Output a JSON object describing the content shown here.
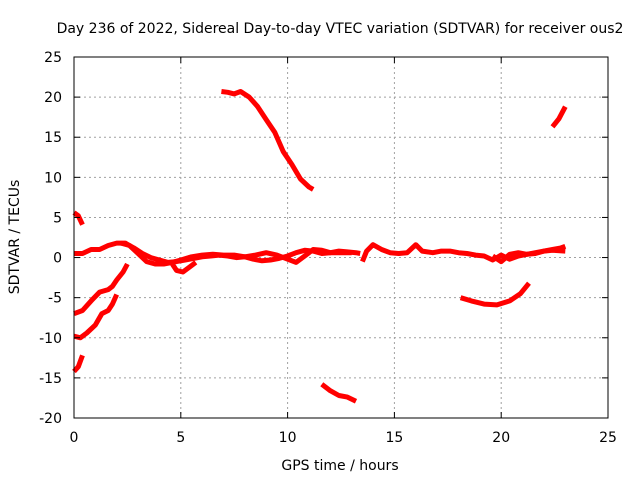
{
  "chart_data": {
    "type": "line",
    "title": "Day 236 of 2022, Sidereal Day-to-day VTEC variation (SDTVAR) for receiver ous2",
    "xlabel": "GPS time / hours",
    "ylabel": "SDTVAR / TECUs",
    "xlim": [
      0,
      25
    ],
    "ylim": [
      -20,
      25
    ],
    "grid": true,
    "legend": "none",
    "x_ticks": [
      "0",
      "5",
      "10",
      "15",
      "20",
      "25"
    ],
    "y_ticks": [
      "-20",
      "-15",
      "-10",
      "-5",
      "0",
      "5",
      "10",
      "15",
      "20",
      "25"
    ],
    "color": "#ff0000",
    "series": [
      {
        "name": "arc-near-zero-1",
        "points": [
          [
            0,
            0.5
          ],
          [
            0.4,
            0.5
          ],
          [
            0.8,
            1.0
          ],
          [
            1.2,
            1.0
          ],
          [
            1.6,
            1.5
          ],
          [
            2.0,
            1.8
          ],
          [
            2.4,
            1.8
          ],
          [
            2.8,
            1.2
          ],
          [
            3.2,
            0.5
          ],
          [
            3.6,
            0.0
          ],
          [
            4.0,
            -0.3
          ],
          [
            4.4,
            -0.6
          ],
          [
            4.8,
            -0.5
          ],
          [
            5.2,
            -0.3
          ],
          [
            5.6,
            -0.1
          ],
          [
            6.0,
            0.1
          ],
          [
            6.4,
            0.2
          ],
          [
            6.8,
            0.3
          ],
          [
            7.2,
            0.2
          ],
          [
            7.6,
            0.0
          ],
          [
            8.0,
            0.1
          ],
          [
            8.4,
            -0.2
          ],
          [
            8.8,
            -0.4
          ],
          [
            9.2,
            -0.3
          ],
          [
            9.6,
            -0.1
          ],
          [
            10.0,
            0.2
          ],
          [
            10.4,
            0.6
          ],
          [
            10.8,
            0.9
          ],
          [
            11.2,
            0.8
          ],
          [
            11.6,
            0.5
          ],
          [
            12.0,
            0.6
          ],
          [
            12.4,
            0.8
          ],
          [
            12.8,
            0.7
          ],
          [
            13.2,
            0.6
          ],
          [
            13.4,
            0.5
          ]
        ]
      },
      {
        "name": "arc-near-zero-2",
        "points": [
          [
            2.2,
            1.8
          ],
          [
            2.6,
            1.5
          ],
          [
            3.0,
            0.5
          ],
          [
            3.4,
            -0.5
          ],
          [
            3.8,
            -0.8
          ],
          [
            4.2,
            -0.8
          ],
          [
            4.6,
            -0.6
          ],
          [
            5.0,
            -0.3
          ],
          [
            5.5,
            0.1
          ],
          [
            6.0,
            0.3
          ],
          [
            6.5,
            0.4
          ],
          [
            7.0,
            0.3
          ],
          [
            7.5,
            0.3
          ],
          [
            8.0,
            0.1
          ],
          [
            8.5,
            0.3
          ],
          [
            9.0,
            0.6
          ],
          [
            9.5,
            0.3
          ],
          [
            10.0,
            -0.2
          ],
          [
            10.4,
            -0.6
          ],
          [
            10.8,
            0.2
          ],
          [
            11.2,
            1.0
          ],
          [
            11.6,
            0.9
          ],
          [
            12.0,
            0.6
          ],
          [
            12.5,
            0.6
          ],
          [
            13.0,
            0.6
          ]
        ]
      },
      {
        "name": "arc-dip-small",
        "points": [
          [
            4.6,
            -0.8
          ],
          [
            4.8,
            -1.6
          ],
          [
            5.1,
            -1.8
          ],
          [
            5.4,
            -1.2
          ],
          [
            5.7,
            -0.6
          ]
        ]
      },
      {
        "name": "arc-near-zero-3",
        "points": [
          [
            13.5,
            -0.5
          ],
          [
            13.7,
            0.8
          ],
          [
            14.0,
            1.6
          ],
          [
            14.4,
            1.0
          ],
          [
            14.8,
            0.6
          ],
          [
            15.2,
            0.5
          ],
          [
            15.6,
            0.6
          ],
          [
            16.0,
            1.6
          ],
          [
            16.3,
            0.8
          ],
          [
            16.8,
            0.6
          ],
          [
            17.2,
            0.8
          ],
          [
            17.6,
            0.8
          ],
          [
            18.0,
            0.6
          ],
          [
            18.4,
            0.5
          ],
          [
            18.8,
            0.3
          ],
          [
            19.2,
            0.2
          ],
          [
            19.6,
            -0.3
          ],
          [
            20.0,
            0.3
          ],
          [
            20.4,
            -0.2
          ],
          [
            20.8,
            0.2
          ],
          [
            21.2,
            0.4
          ],
          [
            21.6,
            0.6
          ],
          [
            22.0,
            0.8
          ],
          [
            22.4,
            1.0
          ],
          [
            22.8,
            1.2
          ],
          [
            23.0,
            1.4
          ]
        ]
      },
      {
        "name": "arc-near-zero-4",
        "points": [
          [
            19.6,
            0.2
          ],
          [
            20.0,
            -0.5
          ],
          [
            20.4,
            0.4
          ],
          [
            20.8,
            0.6
          ],
          [
            21.2,
            0.4
          ],
          [
            21.6,
            0.5
          ],
          [
            22.0,
            0.8
          ],
          [
            22.4,
            0.9
          ],
          [
            23.0,
            0.8
          ]
        ]
      },
      {
        "name": "arc-decreasing-upper",
        "points": [
          [
            6.9,
            20.7
          ],
          [
            7.2,
            20.6
          ],
          [
            7.5,
            20.4
          ],
          [
            7.8,
            20.7
          ],
          [
            8.2,
            20.0
          ],
          [
            8.6,
            18.8
          ],
          [
            9.0,
            17.2
          ],
          [
            9.4,
            15.6
          ],
          [
            9.8,
            13.2
          ],
          [
            10.2,
            11.6
          ],
          [
            10.6,
            9.8
          ],
          [
            11.0,
            8.8
          ],
          [
            11.2,
            8.5
          ]
        ]
      },
      {
        "name": "arc-upper-right",
        "points": [
          [
            22.4,
            16.3
          ],
          [
            22.7,
            17.3
          ],
          [
            23.0,
            18.8
          ]
        ]
      },
      {
        "name": "arc-start-high",
        "points": [
          [
            0,
            5.6
          ],
          [
            0.2,
            5.2
          ],
          [
            0.4,
            4.1
          ]
        ]
      },
      {
        "name": "arc-start-minus7",
        "points": [
          [
            0,
            -7.0
          ],
          [
            0.4,
            -6.6
          ],
          [
            0.8,
            -5.4
          ],
          [
            1.2,
            -4.3
          ],
          [
            1.6,
            -4.0
          ],
          [
            1.8,
            -3.6
          ],
          [
            2.0,
            -2.8
          ],
          [
            2.3,
            -1.8
          ],
          [
            2.5,
            -0.8
          ]
        ]
      },
      {
        "name": "arc-start-minus10",
        "points": [
          [
            0,
            -9.8
          ],
          [
            0.3,
            -10.0
          ],
          [
            0.6,
            -9.4
          ],
          [
            1.0,
            -8.4
          ],
          [
            1.3,
            -7.0
          ],
          [
            1.6,
            -6.6
          ],
          [
            1.8,
            -5.8
          ],
          [
            2.0,
            -4.6
          ]
        ]
      },
      {
        "name": "arc-start-minus14",
        "points": [
          [
            0,
            -14.2
          ],
          [
            0.2,
            -13.6
          ],
          [
            0.4,
            -12.2
          ]
        ]
      },
      {
        "name": "arc-lower-dip",
        "points": [
          [
            18.1,
            -5.0
          ],
          [
            18.6,
            -5.4
          ],
          [
            19.2,
            -5.8
          ],
          [
            19.8,
            -5.9
          ],
          [
            20.4,
            -5.4
          ],
          [
            20.9,
            -4.5
          ],
          [
            21.3,
            -3.2
          ]
        ]
      },
      {
        "name": "arc-lower-left",
        "points": [
          [
            11.6,
            -15.8
          ],
          [
            12.0,
            -16.6
          ],
          [
            12.4,
            -17.2
          ],
          [
            12.8,
            -17.4
          ],
          [
            13.2,
            -17.9
          ]
        ]
      }
    ]
  }
}
